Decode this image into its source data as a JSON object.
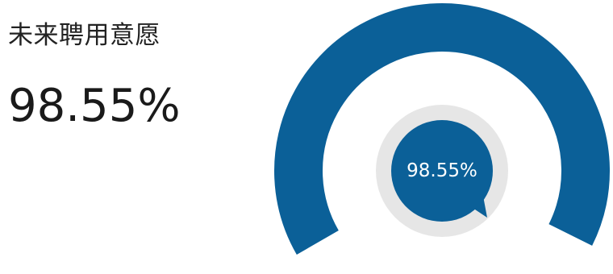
{
  "chart_data": {
    "type": "gauge",
    "title": "未来聘用意愿",
    "value_label": "98.55%",
    "value": 98.55,
    "unit": "%",
    "range": [
      0,
      100
    ],
    "colors": {
      "arc": "#0b6098",
      "bubble": "#0b6098",
      "ring": "#e6e6e6",
      "text": "#ffffff"
    }
  }
}
